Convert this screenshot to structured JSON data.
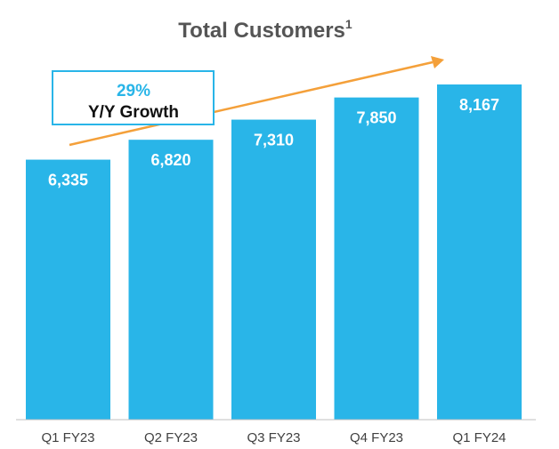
{
  "chart_data": {
    "type": "bar",
    "title": "Total Customers",
    "title_superscript": "1",
    "categories": [
      "Q1 FY23",
      "Q2 FY23",
      "Q3 FY23",
      "Q4 FY23",
      "Q1 FY24"
    ],
    "values": [
      6335,
      6820,
      7310,
      7850,
      8167
    ],
    "value_labels": [
      "6,335",
      "6,820",
      "7,310",
      "7,850",
      "8,167"
    ],
    "xlabel": "",
    "ylabel": "",
    "grid": false,
    "annotation": {
      "percent": "29%",
      "text": "Y/Y Growth"
    }
  },
  "colors": {
    "bar": "#29b5e8",
    "value_label": "#ffffff",
    "title": "#555555",
    "tick_label": "#404040",
    "axis": "#bfbfbf",
    "arrow": "#f4a03a",
    "annotation_border": "#29b5e8",
    "annotation_percent": "#29b5e8",
    "annotation_text": "#111111"
  }
}
